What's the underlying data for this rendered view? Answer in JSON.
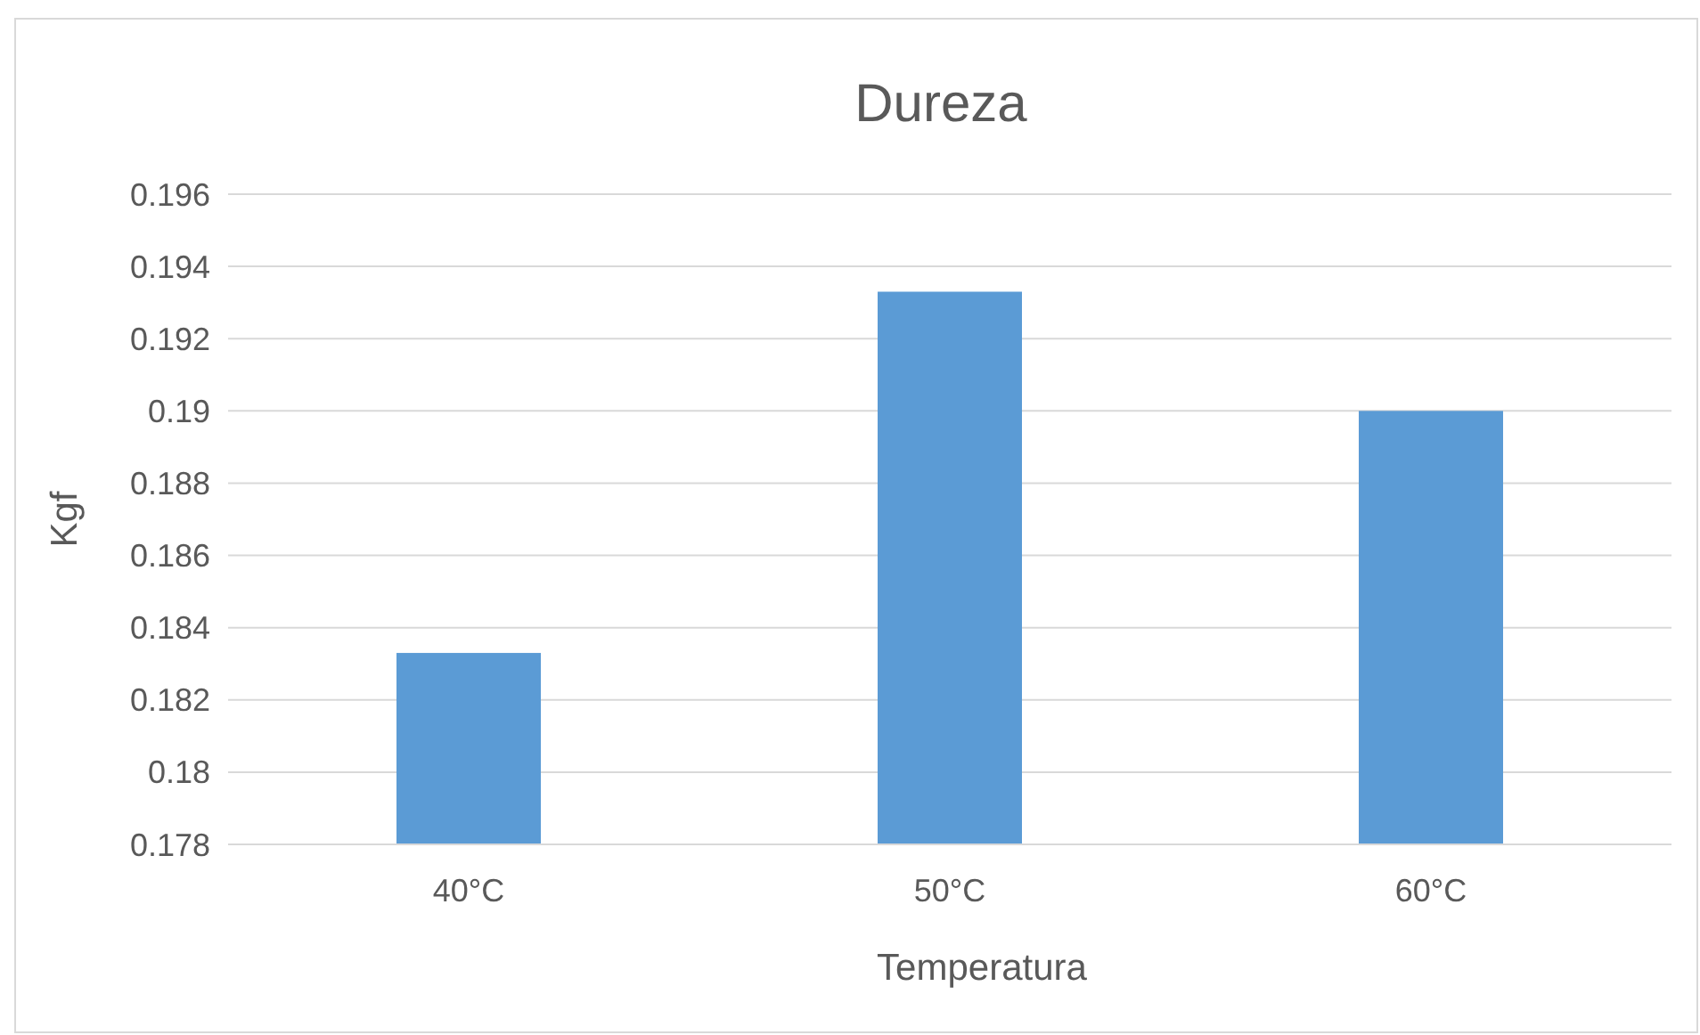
{
  "chart_data": {
    "type": "bar",
    "title": "Dureza",
    "xlabel": "Temperatura",
    "ylabel": "Kgf",
    "categories": [
      "40°C",
      "50°C",
      "60°C"
    ],
    "values": [
      0.1833,
      0.1933,
      0.19
    ],
    "color": "#5b9bd5",
    "ylim": [
      0.178,
      0.196
    ],
    "yticks": [
      0.178,
      0.18,
      0.182,
      0.184,
      0.186,
      0.188,
      0.19,
      0.192,
      0.194,
      0.196
    ],
    "grid": "y"
  }
}
